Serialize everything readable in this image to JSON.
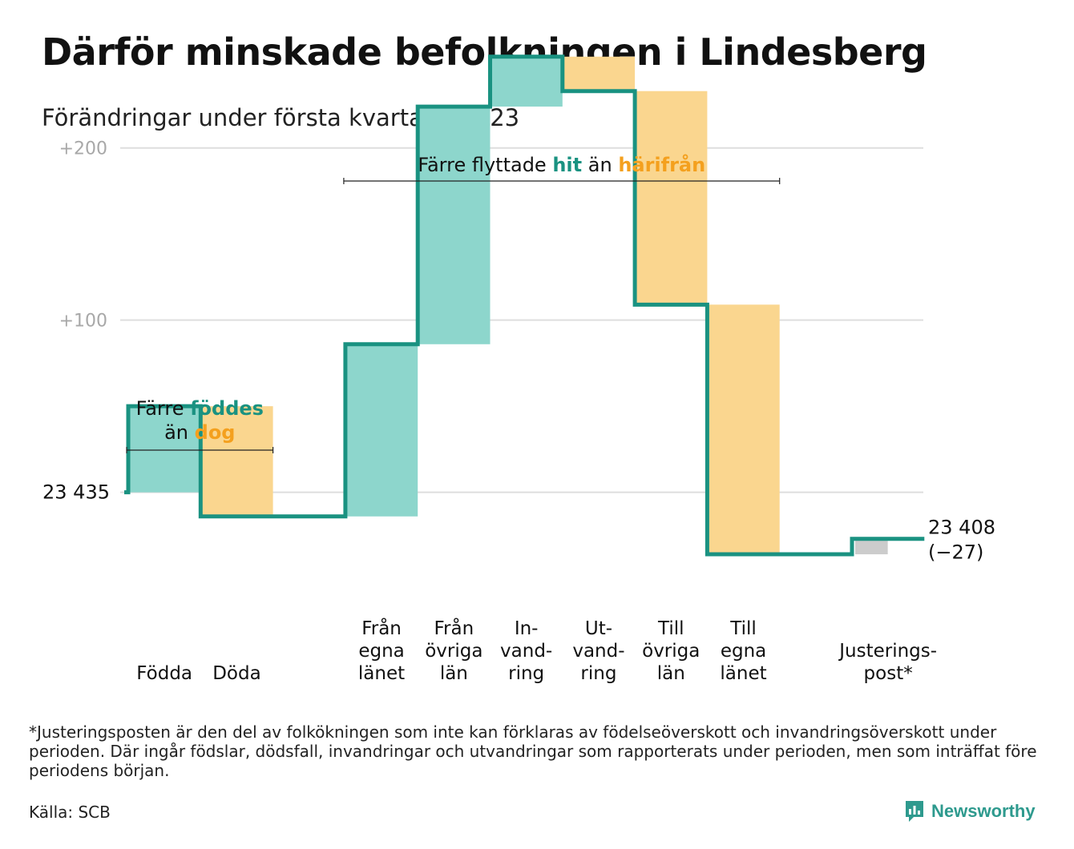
{
  "title": "Därför minskade befolkningen i Lindesberg",
  "subtitle": "Förändringar under första kvartalet 2023",
  "colors": {
    "increase": "#8dd6cc",
    "decrease": "#fad68f",
    "adjust": "#cccccc",
    "line": "#1a9281",
    "grid": "#dedede",
    "tick": "#a8a8a8",
    "teal_text": "#1a9281",
    "orange_text": "#f4a01e"
  },
  "chart_data": {
    "type": "waterfall",
    "start_value": 23435,
    "start_label": "23 435",
    "end_label": "23 408",
    "end_change": "(−27)",
    "y_ticks": [
      {
        "value": 23535,
        "label": "+100"
      },
      {
        "value": 23635,
        "label": "+200"
      }
    ],
    "grid": true,
    "ylim": [
      23386,
      23693
    ],
    "steps": [
      {
        "label": [
          "Födda"
        ],
        "value": 50,
        "kind": "increase"
      },
      {
        "label": [
          "Döda"
        ],
        "value": -64,
        "kind": "decrease"
      },
      {
        "label": [],
        "value": 0,
        "kind": "gap"
      },
      {
        "label": [
          "Från",
          "egna",
          "länet"
        ],
        "value": 100,
        "kind": "increase"
      },
      {
        "label": [
          "Från",
          "övriga",
          "län"
        ],
        "value": 138,
        "kind": "increase"
      },
      {
        "label": [
          "In-",
          "vand-",
          "ring"
        ],
        "value": 29,
        "kind": "increase"
      },
      {
        "label": [
          "Ut-",
          "vand-",
          "ring"
        ],
        "value": -20,
        "kind": "decrease"
      },
      {
        "label": [
          "Till",
          "övriga",
          "län"
        ],
        "value": -124,
        "kind": "decrease"
      },
      {
        "label": [
          "Till",
          "egna",
          "länet"
        ],
        "value": -145,
        "kind": "decrease"
      },
      {
        "label": [],
        "value": 0,
        "kind": "gap"
      },
      {
        "label": [
          "Justerings-",
          "post*"
        ],
        "value": 9,
        "kind": "adjust"
      }
    ],
    "annotations": [
      {
        "lines": [
          [
            {
              "text": "Färre ",
              "color": "default"
            },
            {
              "text": "föddes",
              "color": "teal"
            }
          ],
          [
            {
              "text": "än ",
              "color": "default"
            },
            {
              "text": "dog",
              "color": "orange"
            }
          ]
        ],
        "from_step": 0,
        "to_step": 1
      },
      {
        "lines": [
          [
            {
              "text": "Färre flyttade ",
              "color": "default"
            },
            {
              "text": "hit",
              "color": "teal"
            },
            {
              "text": " än ",
              "color": "default"
            },
            {
              "text": "härifrån",
              "color": "orange"
            }
          ]
        ],
        "from_step": 3,
        "to_step": 8
      }
    ]
  },
  "footnote": "*Justeringsposten är den del av folkökningen som inte kan förklaras av födelseöverskott och invandringsöverskott under perioden. Där ingår födslar, dödsfall, invandringar och utvandringar som rapporterats under perioden, men som inträffat före periodens början.",
  "source": "Källa: SCB",
  "brand": {
    "name": "Newsworthy",
    "icon": "bar-chart-speech-bubble-icon"
  }
}
